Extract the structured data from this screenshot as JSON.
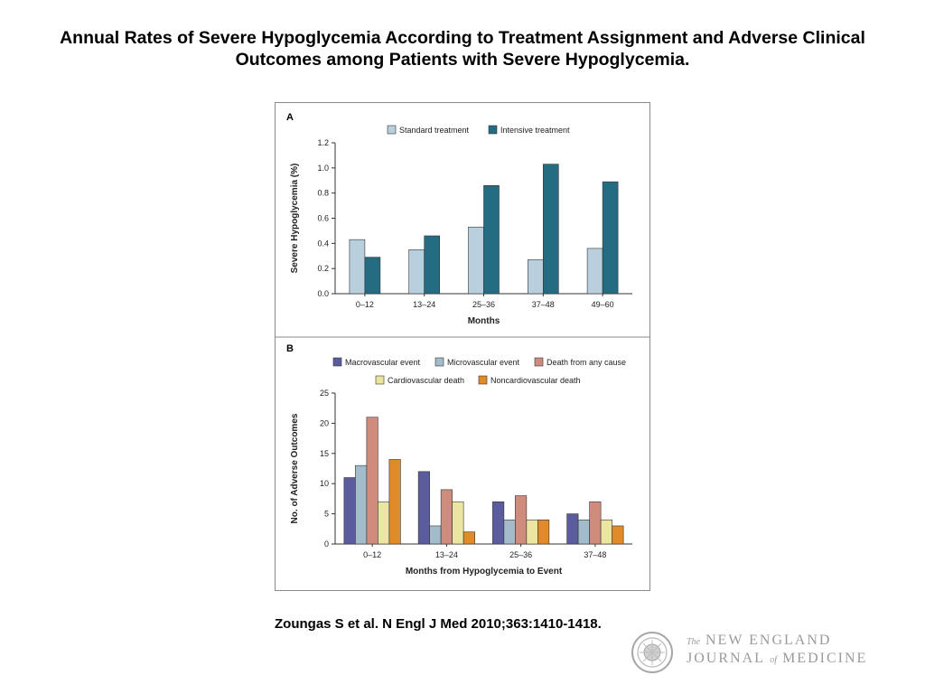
{
  "slide": {
    "title_line1": "Annual Rates of Severe Hypoglycemia According to Treatment Assignment and Adverse Clinical",
    "title_line2": "Outcomes among Patients with Severe Hypoglycemia.",
    "citation": "Zoungas S et al. N Engl J Med 2010;363:1410-1418.",
    "journal": {
      "the": "The",
      "name_line1": "NEW ENGLAND",
      "name_line2_a": "JOURNAL",
      "name_line2_of": "of",
      "name_line2_b": "MEDICINE"
    }
  },
  "colors": {
    "standard": "#b9cfdd",
    "intensive": "#246c82",
    "macrovascular": "#5a5c9e",
    "microvascular": "#a3bccb",
    "death_any": "#cf8c7c",
    "cardiovascular_death": "#ece5a2",
    "noncardiovascular_death": "#e08a2a",
    "frame": "#8a8a8a"
  },
  "chart_data": [
    {
      "panel": "A",
      "type": "bar",
      "categories": [
        "0–12",
        "13–24",
        "25–36",
        "37–48",
        "49–60"
      ],
      "series": [
        {
          "name": "Standard treatment",
          "values": [
            0.43,
            0.35,
            0.53,
            0.27,
            0.36
          ]
        },
        {
          "name": "Intensive treatment",
          "values": [
            0.29,
            0.46,
            0.86,
            1.03,
            0.89
          ]
        }
      ],
      "xlabel": "Months",
      "ylabel": "Severe Hypoglycemia (%)",
      "ylim": [
        0,
        1.2
      ],
      "yticks": [
        "0.0",
        "0.2",
        "0.4",
        "0.6",
        "0.8",
        "1.0",
        "1.2"
      ],
      "legend_position": "top"
    },
    {
      "panel": "B",
      "type": "bar",
      "categories": [
        "0–12",
        "13–24",
        "25–36",
        "37–48"
      ],
      "series": [
        {
          "name": "Macrovascular event",
          "values": [
            11,
            12,
            7,
            5
          ]
        },
        {
          "name": "Microvascular event",
          "values": [
            13,
            3,
            4,
            4
          ]
        },
        {
          "name": "Death from any cause",
          "values": [
            21,
            9,
            8,
            7
          ]
        },
        {
          "name": "Cardiovascular death",
          "values": [
            7,
            7,
            4,
            4
          ]
        },
        {
          "name": "Noncardiovascular death",
          "values": [
            14,
            2,
            4,
            3
          ]
        }
      ],
      "xlabel": "Months from Hypoglycemia to Event",
      "ylabel": "No. of Adverse Outcomes",
      "ylim": [
        0,
        25
      ],
      "yticks": [
        "0",
        "5",
        "10",
        "15",
        "20",
        "25"
      ],
      "legend_position": "top"
    }
  ]
}
